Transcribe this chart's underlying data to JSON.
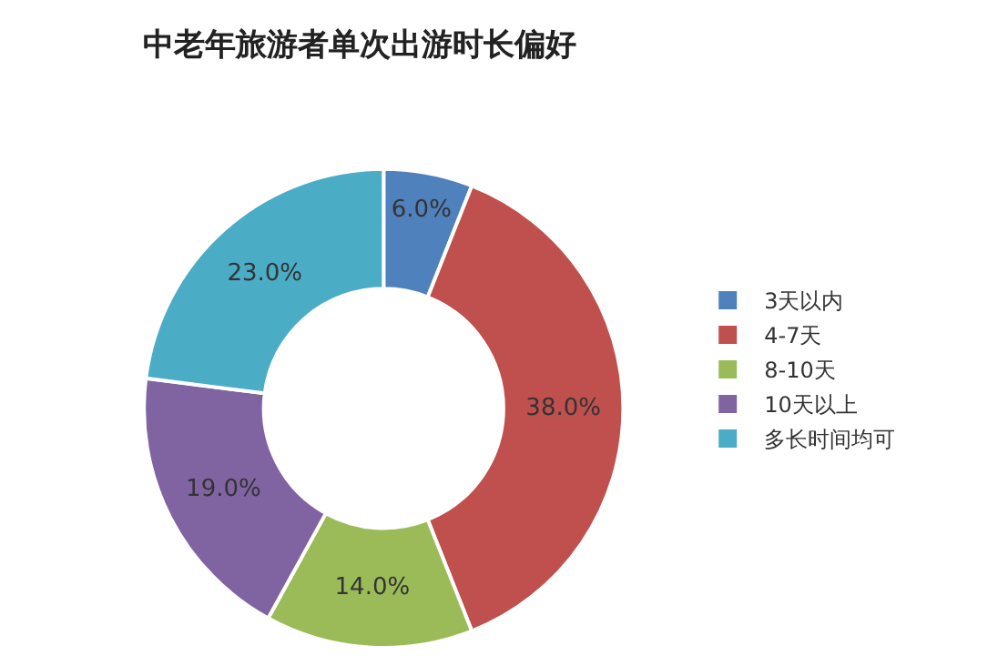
{
  "chart_data": {
    "type": "donut",
    "title": "中老年旅游者单次出游时长偏好",
    "categories": [
      "3天以内",
      "4-7天",
      "8-10天",
      "10天以上",
      "多长时间均可"
    ],
    "values": [
      6,
      38,
      14,
      19,
      23
    ],
    "value_labels": [
      "6.0%",
      "38.0%",
      "14.0%",
      "19.0%",
      "23.0%"
    ],
    "colors": [
      "#4f81bd",
      "#c0504d",
      "#9bbb59",
      "#8064a2",
      "#4bacc6"
    ],
    "legend": "right"
  }
}
